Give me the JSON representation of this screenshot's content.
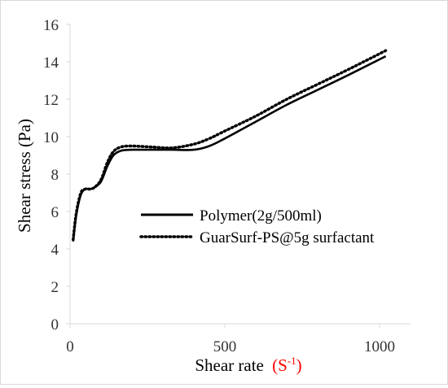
{
  "chart_data": {
    "type": "line",
    "xlabel": "Shear rate",
    "xlabel_unit": "(S",
    "xlabel_unit_sup": "-1",
    "xlabel_unit_close": ")",
    "ylabel": "Shear stress (Pa)",
    "xlim": [
      0,
      1100
    ],
    "ylim": [
      0,
      16
    ],
    "x_ticks": [
      "0",
      "500",
      "1000"
    ],
    "y_ticks": [
      "0",
      "2",
      "4",
      "6",
      "8",
      "10",
      "12",
      "14",
      "16"
    ],
    "grid": false,
    "legend_position": "center-right",
    "series": [
      {
        "name": "Polymer(2g/500ml)",
        "style": "solid",
        "color": "#000000",
        "x": [
          10,
          20,
          35,
          50,
          65,
          80,
          100,
          120,
          140,
          165,
          200,
          260,
          330,
          400,
          450,
          500,
          600,
          700,
          800,
          900,
          1020
        ],
        "y": [
          4.4,
          5.8,
          6.9,
          7.2,
          7.2,
          7.3,
          7.6,
          8.4,
          9.0,
          9.25,
          9.3,
          9.3,
          9.3,
          9.3,
          9.5,
          9.9,
          10.8,
          11.7,
          12.5,
          13.3,
          14.3
        ]
      },
      {
        "name": "GuarSurf-PS@5g surfactant",
        "style": "dotted",
        "color": "#000000",
        "x": [
          10,
          20,
          35,
          50,
          65,
          80,
          100,
          120,
          140,
          165,
          200,
          260,
          330,
          400,
          450,
          500,
          600,
          700,
          800,
          900,
          1020
        ],
        "y": [
          4.5,
          5.9,
          7.0,
          7.2,
          7.2,
          7.3,
          7.7,
          8.6,
          9.2,
          9.45,
          9.5,
          9.45,
          9.4,
          9.6,
          9.9,
          10.3,
          11.1,
          12.0,
          12.8,
          13.6,
          14.6
        ]
      }
    ]
  },
  "colors": {
    "unit_accent": "#ff0000",
    "axis": "#d9d9d9",
    "text": "#333333"
  }
}
